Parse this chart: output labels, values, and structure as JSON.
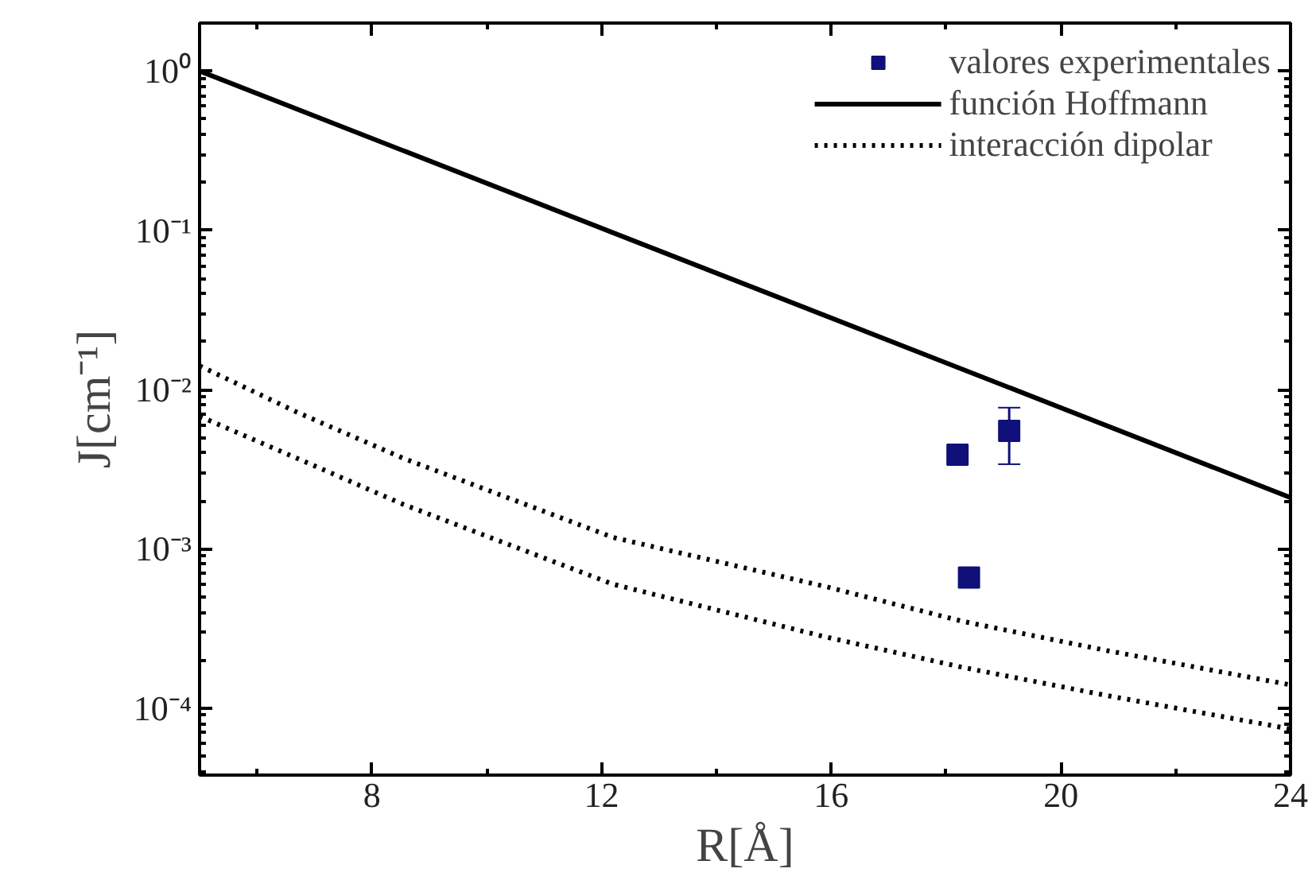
{
  "chart_data": {
    "type": "scatter",
    "xlabel": "R[Å]",
    "ylabel": "J[cm⁻¹]",
    "log": "y",
    "grid": false,
    "legend": "top right",
    "xlim": [
      5,
      24
    ],
    "xticks": [
      {
        "value": 6,
        "label": null
      },
      8,
      {
        "value": 10,
        "label": null
      },
      12,
      {
        "value": 14,
        "label": null
      },
      16,
      {
        "value": 18,
        "label": null
      },
      20,
      {
        "value": 22,
        "label": null
      },
      24
    ],
    "ylim": [
      3.8e-05,
      2
    ],
    "yticks": [
      {
        "value": 1,
        "label": "10⁰"
      },
      {
        "value": 0.1,
        "label": "10⁻¹"
      },
      {
        "value": 0.01,
        "label": "10⁻²"
      },
      {
        "value": 0.001,
        "label": "10⁻³"
      },
      {
        "value": 0.0001,
        "label": "10⁻⁴"
      }
    ],
    "series": [
      {
        "name": "valores experimentales",
        "marker": "square",
        "color": "#10107a",
        "x": [
          18.2,
          18.4,
          19.1
        ],
        "values": [
          0.0039,
          0.00066,
          0.0055
        ],
        "errors": [
          null,
          null,
          [
            0.0034,
            0.0077
          ]
        ]
      },
      {
        "name": "función Hoffmann",
        "type": "line",
        "line_style": "solid",
        "color": "#000000",
        "x": [
          5,
          24
        ],
        "values": [
          1.0,
          0.0021
        ]
      },
      {
        "name": "interacción dipolar",
        "type": "line",
        "line_style": "dotted",
        "color": "#000000",
        "x": [
          5,
          6.7,
          8.55,
          12.2,
          15.9,
          18.3,
          20.8,
          24
        ],
        "values": [
          0.0141,
          0.0072,
          0.0037,
          0.00118,
          0.00058,
          0.00035,
          0.00023,
          0.00014
        ]
      },
      {
        "type": "line",
        "line_style": "dotted",
        "color": "#000000",
        "x": [
          5,
          6.7,
          8.55,
          12.2,
          15.9,
          18.3,
          20.8,
          24
        ],
        "values": [
          0.0068,
          0.0037,
          0.0019,
          0.0006,
          0.00028,
          0.00018,
          0.00012,
          7.4e-05
        ]
      }
    ]
  }
}
